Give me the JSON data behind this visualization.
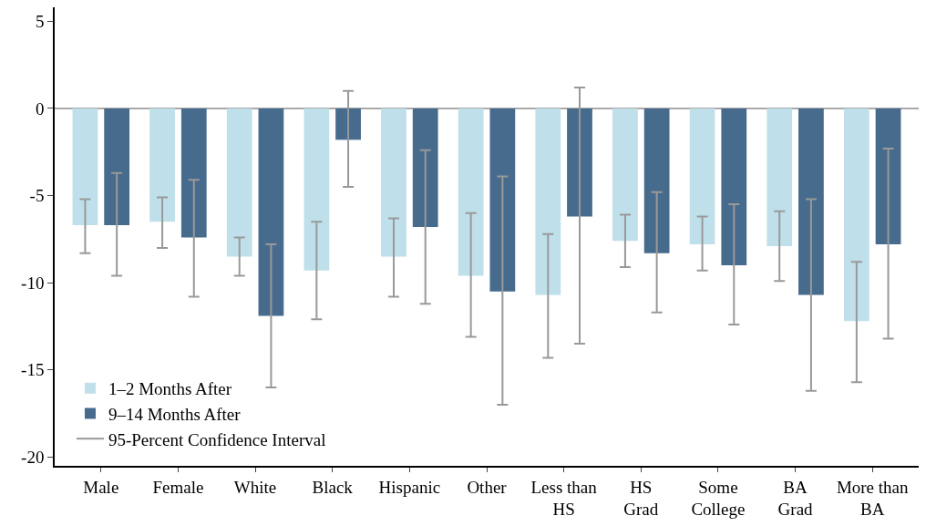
{
  "chart_data": {
    "type": "bar",
    "categories": [
      "Male",
      "Female",
      "White",
      "Black",
      "Hispanic",
      "Other",
      "Less than\nHS",
      "HS\nGrad",
      "Some\nCollege",
      "BA\nGrad",
      "More than\nBA"
    ],
    "series": [
      {
        "name": "1–2 Months After",
        "color": "#bfe0ea",
        "values": [
          -6.7,
          -6.5,
          -8.5,
          -9.3,
          -8.5,
          -9.6,
          -10.7,
          -7.6,
          -7.8,
          -7.9,
          -12.2
        ],
        "errors": [
          [
            -8.3,
            -5.2
          ],
          [
            -8.0,
            -5.1
          ],
          [
            -9.6,
            -7.4
          ],
          [
            -12.1,
            -6.5
          ],
          [
            -10.8,
            -6.3
          ],
          [
            -13.1,
            -6.0
          ],
          [
            -14.3,
            -7.2
          ],
          [
            -9.1,
            -6.1
          ],
          [
            -9.3,
            -6.2
          ],
          [
            -9.9,
            -5.9
          ],
          [
            -15.7,
            -8.8
          ]
        ]
      },
      {
        "name": "9–14 Months After",
        "color": "#476b8c",
        "values": [
          -6.7,
          -7.4,
          -11.9,
          -1.8,
          -6.8,
          -10.5,
          -6.2,
          -8.3,
          -9.0,
          -10.7,
          -7.8
        ],
        "errors": [
          [
            -9.6,
            -3.7
          ],
          [
            -10.8,
            -4.1
          ],
          [
            -16.0,
            -7.8
          ],
          [
            -4.5,
            1.0
          ],
          [
            -11.2,
            -2.4
          ],
          [
            -17.0,
            -3.9
          ],
          [
            -13.5,
            1.2
          ],
          [
            -11.7,
            -4.8
          ],
          [
            -12.4,
            -5.5
          ],
          [
            -16.2,
            -5.2
          ],
          [
            -13.2,
            -2.3
          ]
        ]
      },
      {
        "name": "95-Percent Confidence Interval",
        "type": "line",
        "color": "#999999",
        "values": [
          null,
          null,
          null,
          null,
          null,
          null,
          null,
          null,
          null,
          null,
          null
        ]
      }
    ],
    "ylim": [
      -20.5,
      5.8
    ],
    "yticks": [
      5,
      0,
      -5,
      -10,
      -15,
      -20
    ],
    "legend": "bottom left"
  }
}
